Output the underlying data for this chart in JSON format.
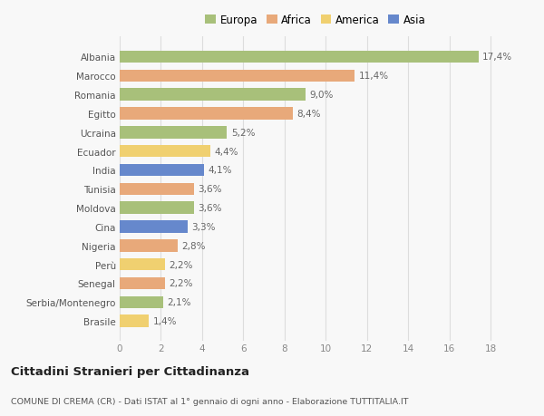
{
  "countries": [
    "Albania",
    "Marocco",
    "Romania",
    "Egitto",
    "Ucraina",
    "Ecuador",
    "India",
    "Tunisia",
    "Moldova",
    "Cina",
    "Nigeria",
    "Perù",
    "Senegal",
    "Serbia/Montenegro",
    "Brasile"
  ],
  "values": [
    17.4,
    11.4,
    9.0,
    8.4,
    5.2,
    4.4,
    4.1,
    3.6,
    3.6,
    3.3,
    2.8,
    2.2,
    2.2,
    2.1,
    1.4
  ],
  "labels": [
    "17,4%",
    "11,4%",
    "9,0%",
    "8,4%",
    "5,2%",
    "4,4%",
    "4,1%",
    "3,6%",
    "3,6%",
    "3,3%",
    "2,8%",
    "2,2%",
    "2,2%",
    "2,1%",
    "1,4%"
  ],
  "continents": [
    "Europa",
    "Africa",
    "Europa",
    "Africa",
    "Europa",
    "America",
    "Asia",
    "Africa",
    "Europa",
    "Asia",
    "Africa",
    "America",
    "Africa",
    "Europa",
    "America"
  ],
  "colors": {
    "Europa": "#a8c07a",
    "Africa": "#e8a97a",
    "America": "#f0d070",
    "Asia": "#6688cc"
  },
  "legend_order": [
    "Europa",
    "Africa",
    "America",
    "Asia"
  ],
  "title": "Cittadini Stranieri per Cittadinanza",
  "subtitle": "COMUNE DI CREMA (CR) - Dati ISTAT al 1° gennaio di ogni anno - Elaborazione TUTTITALIA.IT",
  "xlim": [
    0,
    19
  ],
  "xticks": [
    0,
    2,
    4,
    6,
    8,
    10,
    12,
    14,
    16,
    18
  ],
  "bg_color": "#f8f8f8",
  "grid_color": "#dddddd"
}
